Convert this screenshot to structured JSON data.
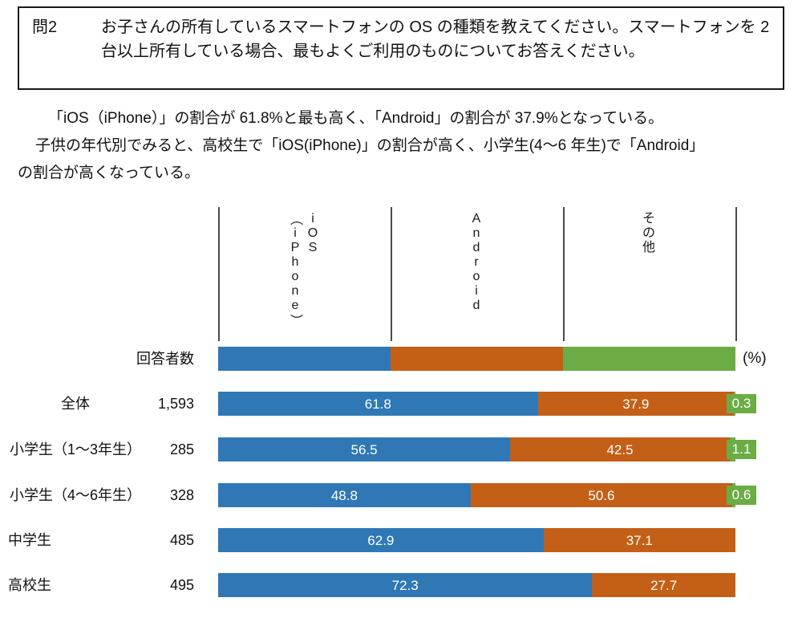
{
  "question_box": {
    "number": "問2",
    "text": "お子さんの所有しているスマートフォンの OS の種類を教えてください。スマートフォンを 2 台以上所有している場合、最もよくご利用のものについてお答えください。"
  },
  "summary": {
    "lines": [
      "「iOS（iPhone）」の割合が 61.8%と最も高く、「Android」の割合が 37.9%となっている。",
      "子供の年代別でみると、高校生で「iOS(iPhone)」の割合が高く、小学生(4～6 年生)で「Android」",
      "の割合が高くなっている。"
    ]
  },
  "chart_data": {
    "type": "bar",
    "orientation": "horizontal",
    "stacked": true,
    "xlim": [
      0,
      100
    ],
    "unit_label": "(%)",
    "count_header": "回答者数",
    "legend_position": "top",
    "grid": true,
    "legend": [
      {
        "name": "iOS（iPhone）",
        "lines": [
          "iOS",
          "（iPhone）"
        ],
        "color": "#2F78B5"
      },
      {
        "name": "Android",
        "lines": [
          "Android"
        ],
        "color": "#C45F17"
      },
      {
        "name": "その他",
        "lines": [
          "その他"
        ],
        "color": "#6CAC45"
      }
    ],
    "categories": [
      "全体",
      "小学生（1～3年生）",
      "小学生（4～6年生）",
      "中学生",
      "高校生"
    ],
    "counts": [
      "1,593",
      "285",
      "328",
      "485",
      "495"
    ],
    "series": [
      {
        "name": "iOS（iPhone）",
        "values": [
          61.8,
          56.5,
          48.8,
          62.9,
          72.3
        ]
      },
      {
        "name": "Android",
        "values": [
          37.9,
          42.5,
          50.6,
          37.1,
          27.7
        ]
      },
      {
        "name": "その他",
        "values": [
          0.3,
          1.1,
          0.6,
          null,
          null
        ]
      }
    ]
  },
  "colors": {
    "ios_blue": "#2F78B5",
    "android_orange": "#C45F17",
    "other_green": "#6CAC45",
    "gridline": "#4a4a4a",
    "text": "#111111"
  }
}
